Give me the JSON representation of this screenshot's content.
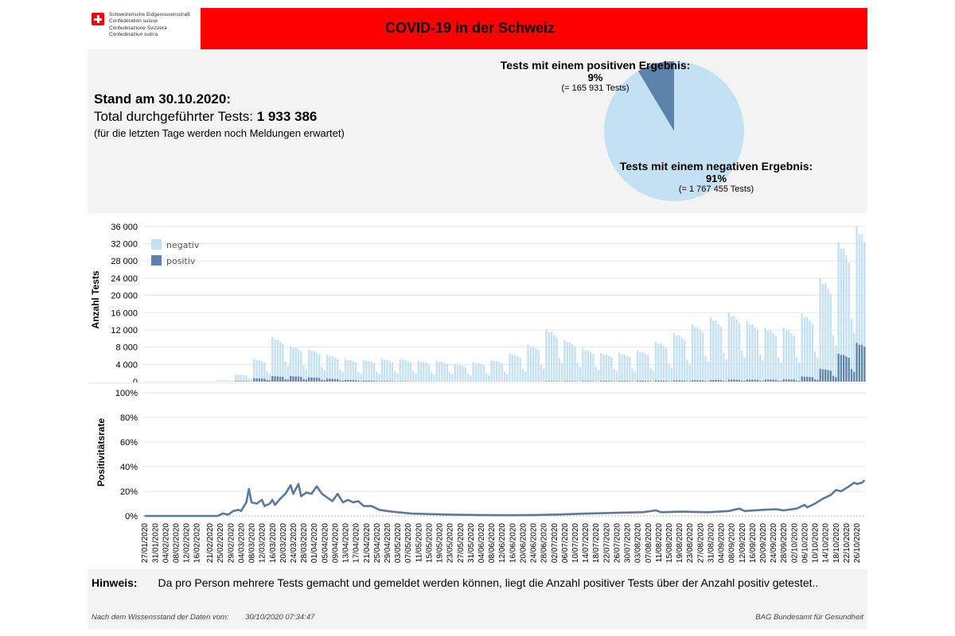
{
  "header": {
    "logo_lines": [
      "Schweizerische Eidgenossenschaft",
      "Confédération suisse",
      "Confederazione Svizzera",
      "Confederaziun svizra"
    ],
    "title": "COVID-19 in der Schweiz"
  },
  "summary": {
    "stand": "Stand am 30.10.2020:",
    "total_label": "Total durchgeführter Tests:",
    "total_value": "1 933 386",
    "note": "(für die letzten Tage werden noch Meldungen erwartet)"
  },
  "pie": {
    "positive": {
      "heading": "Tests mit einem positiven Ergebnis:",
      "percent": "9%",
      "count": "(= 165 931 Tests)"
    },
    "negative": {
      "heading": "Tests mit einem negativen Ergebnis:",
      "percent": "91%",
      "count": "(= 1 767 455 Tests)"
    }
  },
  "hint": {
    "label": "Hinweis:",
    "text": "Da pro Person mehrere Tests gemacht und gemeldet werden können, liegt die Anzahl positiver Tests über der Anzahl positiv getestet.."
  },
  "footer": {
    "left": "Nach dem Wissensstand der Daten vom:",
    "date": "30/10/2020 07:34:47",
    "right": "BAG Bundesamt für Gesundheit"
  },
  "colors": {
    "negative": "#c4e0f3",
    "positive": "#5b82a8",
    "line": "#5b7a99",
    "title_bar": "#ff0000"
  },
  "chart_data": [
    {
      "type": "pie",
      "slices": [
        {
          "label": "positiv",
          "value": 165931,
          "percent": 9
        },
        {
          "label": "negativ",
          "value": 1767455,
          "percent": 91
        }
      ]
    },
    {
      "type": "bar",
      "stacked": true,
      "ylabel": "Anzahl Tests",
      "ylim": [
        0,
        38000
      ],
      "yticks": [
        0,
        4000,
        8000,
        12000,
        16000,
        20000,
        24000,
        28000,
        32000,
        36000
      ],
      "ytick_labels": [
        "0",
        "4 000",
        "8 000",
        "12 000",
        "16 000",
        "20 000",
        "24 000",
        "28 000",
        "32 000",
        "36 000"
      ],
      "legend": {
        "placement": "top-left",
        "entries": [
          "negativ",
          "positiv"
        ]
      },
      "x_start": "2020-01-27",
      "x_end": "2020-10-29",
      "series": [
        {
          "name": "negativ",
          "weekly_profile": [
            {
              "week_of": "2020-01-27",
              "peak": 0
            },
            {
              "week_of": "2020-02-03",
              "peak": 0
            },
            {
              "week_of": "2020-02-10",
              "peak": 0
            },
            {
              "week_of": "2020-02-17",
              "peak": 0
            },
            {
              "week_of": "2020-02-24",
              "peak": 300
            },
            {
              "week_of": "2020-03-02",
              "peak": 1500
            },
            {
              "week_of": "2020-03-09",
              "peak": 4500
            },
            {
              "week_of": "2020-03-16",
              "peak": 9000
            },
            {
              "week_of": "2020-03-23",
              "peak": 7000
            },
            {
              "week_of": "2020-03-30",
              "peak": 6500
            },
            {
              "week_of": "2020-04-06",
              "peak": 5500
            },
            {
              "week_of": "2020-04-13",
              "peak": 4800
            },
            {
              "week_of": "2020-04-20",
              "peak": 4800
            },
            {
              "week_of": "2020-04-27",
              "peak": 5200
            },
            {
              "week_of": "2020-05-04",
              "peak": 5200
            },
            {
              "week_of": "2020-05-11",
              "peak": 4800
            },
            {
              "week_of": "2020-05-18",
              "peak": 4800
            },
            {
              "week_of": "2020-05-25",
              "peak": 4000
            },
            {
              "week_of": "2020-06-01",
              "peak": 4500
            },
            {
              "week_of": "2020-06-08",
              "peak": 5000
            },
            {
              "week_of": "2020-06-15",
              "peak": 6500
            },
            {
              "week_of": "2020-06-22",
              "peak": 8500
            },
            {
              "week_of": "2020-06-29",
              "peak": 12000
            },
            {
              "week_of": "2020-07-06",
              "peak": 9500
            },
            {
              "week_of": "2020-07-13",
              "peak": 7500
            },
            {
              "week_of": "2020-07-20",
              "peak": 6500
            },
            {
              "week_of": "2020-07-27",
              "peak": 6500
            },
            {
              "week_of": "2020-08-03",
              "peak": 7000
            },
            {
              "week_of": "2020-08-10",
              "peak": 9000
            },
            {
              "week_of": "2020-08-17",
              "peak": 11000
            },
            {
              "week_of": "2020-08-24",
              "peak": 13000
            },
            {
              "week_of": "2020-08-31",
              "peak": 14500
            },
            {
              "week_of": "2020-09-07",
              "peak": 15500
            },
            {
              "week_of": "2020-09-14",
              "peak": 13500
            },
            {
              "week_of": "2020-09-21",
              "peak": 12000
            },
            {
              "week_of": "2020-09-28",
              "peak": 12000
            },
            {
              "week_of": "2020-10-05",
              "peak": 14500
            },
            {
              "week_of": "2020-10-12",
              "peak": 21000
            },
            {
              "week_of": "2020-10-19",
              "peak": 26000
            },
            {
              "week_of": "2020-10-26",
              "peak": 27000
            }
          ]
        },
        {
          "name": "positiv",
          "weekly_profile": [
            {
              "week_of": "2020-01-27",
              "peak": 0
            },
            {
              "week_of": "2020-02-03",
              "peak": 0
            },
            {
              "week_of": "2020-02-10",
              "peak": 0
            },
            {
              "week_of": "2020-02-17",
              "peak": 0
            },
            {
              "week_of": "2020-02-24",
              "peak": 10
            },
            {
              "week_of": "2020-03-02",
              "peak": 150
            },
            {
              "week_of": "2020-03-09",
              "peak": 800
            },
            {
              "week_of": "2020-03-16",
              "peak": 1300
            },
            {
              "week_of": "2020-03-23",
              "peak": 1300
            },
            {
              "week_of": "2020-03-30",
              "peak": 1000
            },
            {
              "week_of": "2020-04-06",
              "peak": 700
            },
            {
              "week_of": "2020-04-13",
              "peak": 400
            },
            {
              "week_of": "2020-04-20",
              "peak": 250
            },
            {
              "week_of": "2020-04-27",
              "peak": 150
            },
            {
              "week_of": "2020-05-04",
              "peak": 80
            },
            {
              "week_of": "2020-05-11",
              "peak": 50
            },
            {
              "week_of": "2020-05-18",
              "peak": 30
            },
            {
              "week_of": "2020-05-25",
              "peak": 25
            },
            {
              "week_of": "2020-06-01",
              "peak": 25
            },
            {
              "week_of": "2020-06-08",
              "peak": 25
            },
            {
              "week_of": "2020-06-15",
              "peak": 30
            },
            {
              "week_of": "2020-06-22",
              "peak": 60
            },
            {
              "week_of": "2020-06-29",
              "peak": 100
            },
            {
              "week_of": "2020-07-06",
              "peak": 120
            },
            {
              "week_of": "2020-07-13",
              "peak": 150
            },
            {
              "week_of": "2020-07-20",
              "peak": 170
            },
            {
              "week_of": "2020-07-27",
              "peak": 170
            },
            {
              "week_of": "2020-08-03",
              "peak": 200
            },
            {
              "week_of": "2020-08-10",
              "peak": 260
            },
            {
              "week_of": "2020-08-17",
              "peak": 280
            },
            {
              "week_of": "2020-08-24",
              "peak": 350
            },
            {
              "week_of": "2020-08-31",
              "peak": 400
            },
            {
              "week_of": "2020-09-07",
              "peak": 500
            },
            {
              "week_of": "2020-09-14",
              "peak": 500
            },
            {
              "week_of": "2020-09-21",
              "peak": 500
            },
            {
              "week_of": "2020-09-28",
              "peak": 550
            },
            {
              "week_of": "2020-10-05",
              "peak": 1200
            },
            {
              "week_of": "2020-10-12",
              "peak": 3000
            },
            {
              "week_of": "2020-10-19",
              "peak": 6500
            },
            {
              "week_of": "2020-10-26",
              "peak": 9000
            }
          ]
        }
      ],
      "weekday_factors": [
        1.0,
        0.95,
        0.95,
        0.9,
        0.85,
        0.45,
        0.35
      ]
    },
    {
      "type": "line",
      "ylabel": "Positivitätsrate",
      "ylim": [
        0,
        100
      ],
      "yticks": [
        0,
        20,
        40,
        60,
        80,
        100
      ],
      "ytick_labels": [
        "0%",
        "20%",
        "40%",
        "60%",
        "80%",
        "100%"
      ],
      "points": [
        [
          "2020-01-27",
          0
        ],
        [
          "2020-02-24",
          0
        ],
        [
          "2020-02-26",
          2
        ],
        [
          "2020-02-28",
          1
        ],
        [
          "2020-03-01",
          4
        ],
        [
          "2020-03-03",
          5
        ],
        [
          "2020-03-04",
          4
        ],
        [
          "2020-03-06",
          11
        ],
        [
          "2020-03-07",
          22
        ],
        [
          "2020-03-08",
          11
        ],
        [
          "2020-03-10",
          10
        ],
        [
          "2020-03-12",
          13
        ],
        [
          "2020-03-13",
          8
        ],
        [
          "2020-03-15",
          10
        ],
        [
          "2020-03-16",
          13
        ],
        [
          "2020-03-17",
          9
        ],
        [
          "2020-03-19",
          14
        ],
        [
          "2020-03-21",
          18
        ],
        [
          "2020-03-23",
          25
        ],
        [
          "2020-03-24",
          18
        ],
        [
          "2020-03-26",
          26
        ],
        [
          "2020-03-27",
          16
        ],
        [
          "2020-03-29",
          19
        ],
        [
          "2020-03-31",
          18
        ],
        [
          "2020-04-02",
          24
        ],
        [
          "2020-04-04",
          18
        ],
        [
          "2020-04-06",
          15
        ],
        [
          "2020-04-08",
          12
        ],
        [
          "2020-04-10",
          18
        ],
        [
          "2020-04-12",
          11
        ],
        [
          "2020-04-14",
          13
        ],
        [
          "2020-04-16",
          11
        ],
        [
          "2020-04-18",
          12
        ],
        [
          "2020-04-20",
          8
        ],
        [
          "2020-04-23",
          8
        ],
        [
          "2020-04-26",
          5
        ],
        [
          "2020-04-29",
          4
        ],
        [
          "2020-05-03",
          3
        ],
        [
          "2020-05-08",
          2
        ],
        [
          "2020-05-15",
          1.5
        ],
        [
          "2020-05-25",
          1
        ],
        [
          "2020-06-05",
          0.7
        ],
        [
          "2020-06-15",
          0.6
        ],
        [
          "2020-06-25",
          0.8
        ],
        [
          "2020-07-05",
          1.2
        ],
        [
          "2020-07-15",
          2
        ],
        [
          "2020-07-25",
          2.5
        ],
        [
          "2020-08-05",
          3
        ],
        [
          "2020-08-10",
          4.5
        ],
        [
          "2020-08-12",
          3
        ],
        [
          "2020-08-20",
          3.5
        ],
        [
          "2020-08-30",
          3
        ],
        [
          "2020-09-07",
          4
        ],
        [
          "2020-09-11",
          6
        ],
        [
          "2020-09-13",
          4
        ],
        [
          "2020-09-20",
          5
        ],
        [
          "2020-09-25",
          5.5
        ],
        [
          "2020-09-28",
          4.5
        ],
        [
          "2020-10-03",
          6
        ],
        [
          "2020-10-06",
          9
        ],
        [
          "2020-10-07",
          7
        ],
        [
          "2020-10-10",
          10
        ],
        [
          "2020-10-13",
          14
        ],
        [
          "2020-10-16",
          17
        ],
        [
          "2020-10-18",
          21
        ],
        [
          "2020-10-20",
          20
        ],
        [
          "2020-10-23",
          24
        ],
        [
          "2020-10-25",
          27
        ],
        [
          "2020-10-26",
          26
        ],
        [
          "2020-10-28",
          27
        ],
        [
          "2020-10-29",
          29
        ]
      ]
    }
  ],
  "x_tick_labels": [
    "27/01/2020",
    "31/01/2020",
    "04/02/2020",
    "08/02/2020",
    "12/02/2020",
    "16/02/2020",
    "21/02/2020",
    "25/02/2020",
    "29/02/2020",
    "04/03/2020",
    "08/03/2020",
    "12/03/2020",
    "16/03/2020",
    "20/03/2020",
    "24/03/2020",
    "28/03/2020",
    "01/04/2020",
    "05/04/2020",
    "09/04/2020",
    "13/04/2020",
    "17/04/2020",
    "21/04/2020",
    "25/04/2020",
    "29/04/2020",
    "03/05/2020",
    "07/05/2020",
    "11/05/2020",
    "15/05/2020",
    "19/05/2020",
    "23/05/2020",
    "27/05/2020",
    "31/05/2020",
    "04/06/2020",
    "08/06/2020",
    "12/06/2020",
    "16/06/2020",
    "20/06/2020",
    "24/06/2020",
    "28/06/2020",
    "02/07/2020",
    "06/07/2020",
    "10/07/2020",
    "14/07/2020",
    "18/07/2020",
    "22/07/2020",
    "26/07/2020",
    "30/07/2020",
    "03/08/2020",
    "07/08/2020",
    "11/08/2020",
    "15/08/2020",
    "19/08/2020",
    "23/08/2020",
    "27/08/2020",
    "31/08/2020",
    "04/09/2020",
    "08/09/2020",
    "12/09/2020",
    "16/09/2020",
    "20/09/2020",
    "24/09/2020",
    "28/09/2020",
    "02/10/2020",
    "06/10/2020",
    "10/10/2020",
    "14/10/2020",
    "18/10/2020",
    "22/10/2020",
    "26/10/2020"
  ]
}
